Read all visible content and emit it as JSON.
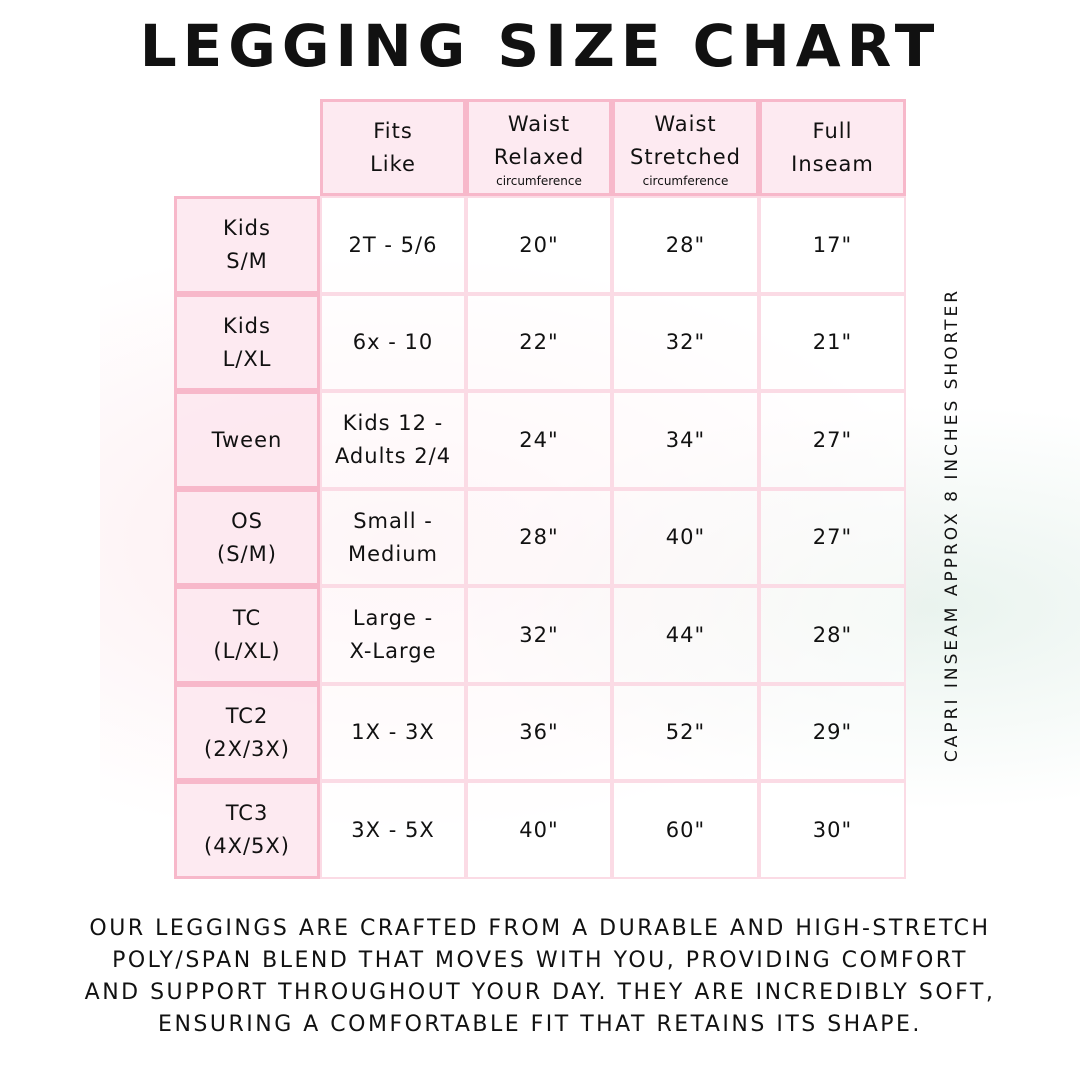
{
  "title": "LEGGING SIZE CHART",
  "headers": [
    {
      "line1": "Fits",
      "line2": "Like",
      "sub": ""
    },
    {
      "line1": "Waist",
      "line2": "Relaxed",
      "sub": "circumference"
    },
    {
      "line1": "Waist",
      "line2": "Stretched",
      "sub": "circumference"
    },
    {
      "line1": "Full",
      "line2": "Inseam",
      "sub": ""
    }
  ],
  "rows": [
    {
      "size1": "Kids",
      "size2": "S/M",
      "fits1": "2T - 5/6",
      "fits2": "",
      "relaxed": "20\"",
      "stretched": "28\"",
      "inseam": "17\""
    },
    {
      "size1": "Kids",
      "size2": "L/XL",
      "fits1": "6x - 10",
      "fits2": "",
      "relaxed": "22\"",
      "stretched": "32\"",
      "inseam": "21\""
    },
    {
      "size1": "Tween",
      "size2": "",
      "fits1": "Kids 12 -",
      "fits2": "Adults 2/4",
      "relaxed": "24\"",
      "stretched": "34\"",
      "inseam": "27\""
    },
    {
      "size1": "OS",
      "size2": "(S/M)",
      "fits1": "Small -",
      "fits2": "Medium",
      "relaxed": "28\"",
      "stretched": "40\"",
      "inseam": "27\""
    },
    {
      "size1": "TC",
      "size2": "(L/XL)",
      "fits1": "Large -",
      "fits2": "X-Large",
      "relaxed": "32\"",
      "stretched": "44\"",
      "inseam": "28\""
    },
    {
      "size1": "TC2",
      "size2": "(2X/3X)",
      "fits1": "1X - 3X",
      "fits2": "",
      "relaxed": "36\"",
      "stretched": "52\"",
      "inseam": "29\""
    },
    {
      "size1": "TC3",
      "size2": "(4X/5X)",
      "fits1": "3X - 5X",
      "fits2": "",
      "relaxed": "40\"",
      "stretched": "60\"",
      "inseam": "30\""
    }
  ],
  "side_note": "CAPRI INSEAM APPROX 8 INCHES SHORTER",
  "footer": [
    "Our leggings are crafted from a durable and high-stretch",
    "poly/span blend that moves with you, providing comfort",
    "and support throughout your day. They are incredibly soft,",
    "ensuring a comfortable fit that retains its shape."
  ],
  "colors": {
    "header_fill": "#fde8ef",
    "border": "#f7b8ca"
  }
}
